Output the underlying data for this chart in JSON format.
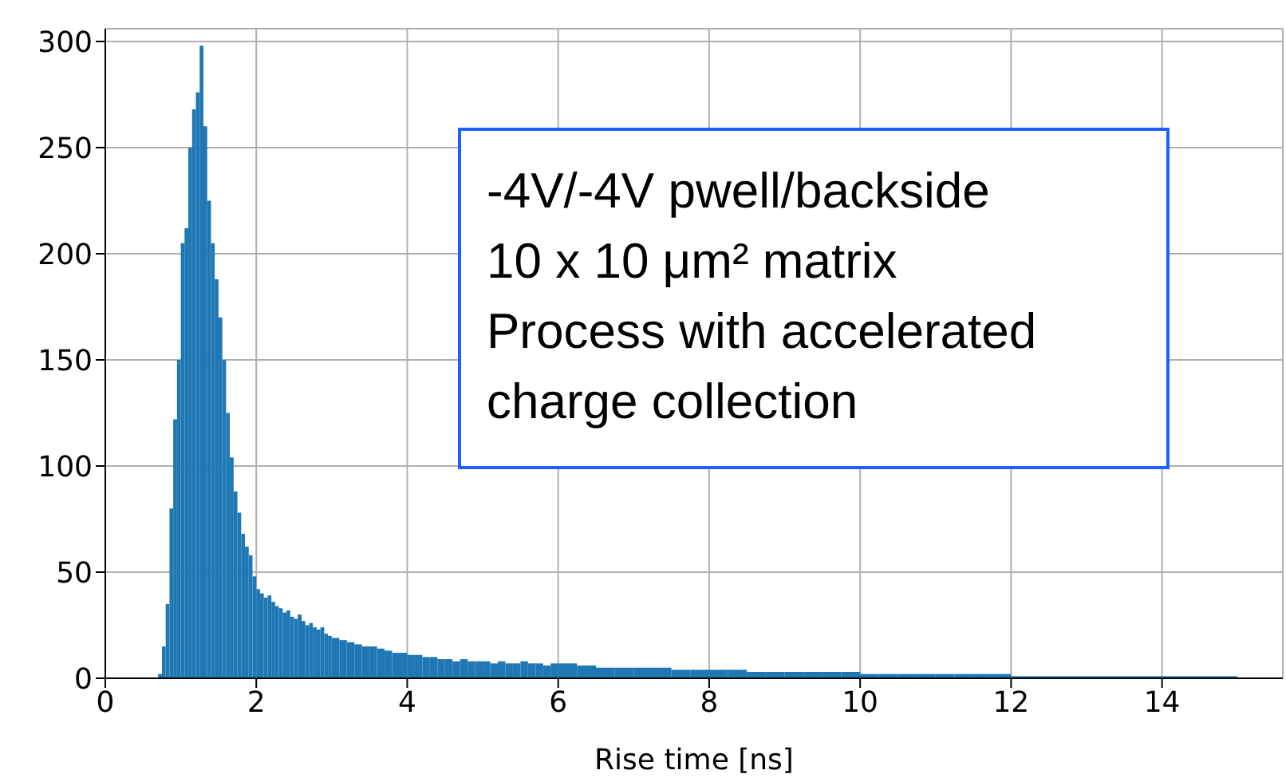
{
  "chart_data": {
    "type": "histogram",
    "xlabel": "Rise time [ns]",
    "bins": [
      0.7,
      0.75,
      0.8,
      0.85,
      0.9,
      0.95,
      1.0,
      1.05,
      1.1,
      1.15,
      1.2,
      1.25,
      1.3,
      1.35,
      1.4,
      1.45,
      1.5,
      1.55,
      1.6,
      1.65,
      1.7,
      1.75,
      1.8,
      1.85,
      1.9,
      1.95,
      2.0,
      2.05,
      2.1,
      2.15,
      2.2,
      2.25,
      2.3,
      2.35,
      2.4,
      2.45,
      2.5,
      2.55,
      2.6,
      2.65,
      2.7,
      2.75,
      2.8,
      2.85,
      2.9,
      2.95,
      3.0,
      3.1,
      3.2,
      3.3,
      3.4,
      3.5,
      3.6,
      3.7,
      3.8,
      3.9,
      4.0,
      4.1,
      4.2,
      4.3,
      4.4,
      4.5,
      4.6,
      4.7,
      4.8,
      4.9,
      5.0,
      5.1,
      5.2,
      5.3,
      5.4,
      5.5,
      5.6,
      5.7,
      5.8,
      5.9,
      6.0,
      6.25,
      6.5,
      6.75,
      7.0,
      7.25,
      7.5,
      7.75,
      8.0,
      8.25,
      8.5,
      8.75,
      9.0,
      9.25,
      9.5,
      9.75,
      10.0,
      10.25,
      10.5,
      10.75,
      11.0,
      11.25,
      11.5,
      11.75,
      12.0,
      12.25,
      12.5,
      12.75,
      13.0,
      13.25,
      13.5,
      13.75,
      14.0,
      14.25,
      14.5,
      14.75,
      15.0
    ],
    "values": [
      2,
      15,
      35,
      80,
      122,
      150,
      205,
      212,
      250,
      268,
      276,
      298,
      260,
      225,
      205,
      188,
      170,
      150,
      125,
      104,
      88,
      78,
      68,
      62,
      58,
      48,
      42,
      40,
      38,
      39,
      36,
      34,
      33,
      31,
      32,
      29,
      28,
      30,
      27,
      25,
      26,
      24,
      23,
      24,
      21,
      20,
      19,
      18,
      17,
      16,
      15,
      15,
      14,
      13,
      12,
      12,
      11,
      11,
      10,
      10,
      9,
      9,
      8,
      9,
      8,
      8,
      8,
      7,
      8,
      7,
      7,
      8,
      7,
      7,
      6,
      7,
      7,
      6,
      5,
      5,
      5,
      5,
      4,
      4,
      4,
      4,
      3,
      3,
      3,
      3,
      3,
      3,
      2,
      2,
      2,
      2,
      2,
      2,
      2,
      2,
      1,
      1,
      1,
      1,
      1,
      1,
      1,
      1,
      1,
      1,
      1,
      1
    ],
    "color": "#1f77b4",
    "xlim": [
      0,
      15.6
    ],
    "xticks": [
      0,
      2,
      4,
      6,
      8,
      10,
      12,
      14
    ],
    "ylim": [
      0,
      306
    ],
    "yticks": [
      0,
      50,
      100,
      150,
      200,
      250,
      300
    ],
    "grid": true,
    "annotations": [
      "-4V/-4V pwell/backside",
      "10 x 10 μm² matrix",
      "Process with accelerated",
      "charge collection"
    ]
  }
}
